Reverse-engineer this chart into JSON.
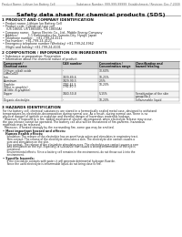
{
  "header_top_left": "Product Name: Lithium Ion Battery Cell",
  "header_top_right": "Substance Number: 999-999-99999  Establishment / Revision: Dec.7.2009",
  "title": "Safety data sheet for chemical products (SDS)",
  "section1_header": "1 PRODUCT AND COMPANY IDENTIFICATION",
  "section1_lines": [
    "• Product name: Lithium Ion Battery Cell",
    "• Product code: Cylindrical-type cell",
    "    (US 18650, US 18650BL, US 18650A)",
    "• Company name:   Sanyo Electric Co., Ltd., Mobile Energy Company",
    "• Address:           1-1 Kamionaka-cho, Sumoto-City, Hyogo, Japan",
    "• Telephone number:   +81-799-24-4111",
    "• Fax number:  +81-799-24-4121",
    "• Emergency telephone number (Weekday) +81-799-24-3962",
    "   (Night and holiday) +81-799-24-4101"
  ],
  "section2_header": "2 COMPOSITION / INFORMATION ON INGREDIENTS",
  "section2_intro": "• Substance or preparation: Preparation",
  "section2_sub": "• Information about the chemical nature of product:",
  "col_headers1": [
    "Component /Chemical name",
    "CAS number",
    "Concentration /\nConcentration range",
    "Classification and\nhazard labeling"
  ],
  "table_rows": [
    [
      "Lithium cobalt oxide\n(LiMnCoO2)",
      "-",
      "30-60%",
      ""
    ],
    [
      "Iron",
      "7439-89-6",
      "10-25%",
      ""
    ],
    [
      "Aluminum",
      "7429-90-5",
      "2-5%",
      ""
    ],
    [
      "Graphite\n(Most in graphite)\n(A little in graphite)",
      "7782-42-5\n7782-40-3",
      "10-20%",
      ""
    ],
    [
      "Copper",
      "7440-50-8",
      "5-15%",
      "Sensitization of the skin\ngroup No.2"
    ],
    [
      "Organic electrolyte",
      "-",
      "10-20%",
      "Inflammable liquid"
    ]
  ],
  "section3_header": "3 HAZARDS IDENTIFICATION",
  "section3_lines": [
    "For the battery cell, chemical substances are stored in a hermetically sealed metal case, designed to withstand",
    "temperatures by electrolyte-decomposition during normal use. As a result, during normal use, there is no",
    "physical danger of ignition or explosion and thermal danger of hazardous materials leakage.",
    "  However, if exposed to a fire, added mechanical shocks, decomposed, when electrolyte release may occur,",
    "the gas release cannot be operated. The battery cell also will be threatened of fire-partems, hazardous",
    "materials may be released.",
    "  Moreover, if heated strongly by the surrounding fire, some gas may be emitted."
  ],
  "bullet1": "• Most important hazard and effects:",
  "human_header": "Human health effects:",
  "human_lines": [
    "   Inhalation: The release of the electrolyte has an anesthesia action and stimulates in respiratory tract.",
    "   Skin contact: The release of the electrolyte stimulates a skin. The electrolyte skin contact causes a",
    "   sore and stimulation on the skin.",
    "   Eye contact: The release of the electrolyte stimulates eyes. The electrolyte eye contact causes a sore",
    "   and stimulation on the eye. Especially, a substance that causes a strong inflammation of the eye is",
    "   contained.",
    "   Environmental effects: Since a battery cell remains in the environment, do not throw out it into the",
    "   environment."
  ],
  "bullet2": "• Specific hazards:",
  "specific_lines": [
    "   If the electrolyte contacts with water, it will generate detrimental hydrogen fluoride.",
    "   Since the used electrolyte is inflammable liquid, do not bring close to fire."
  ]
}
